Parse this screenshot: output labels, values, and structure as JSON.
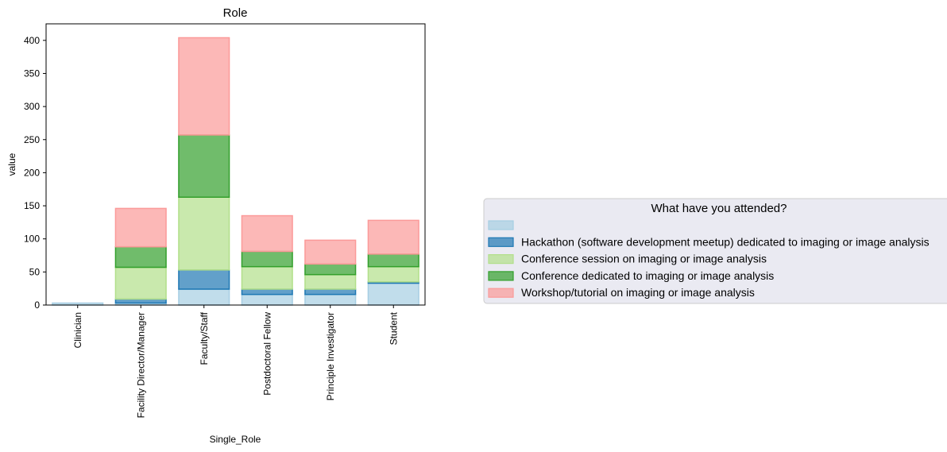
{
  "chart_data": {
    "type": "bar",
    "stacked": true,
    "title": "Role",
    "xlabel": "Single_Role",
    "ylabel": "value",
    "ylim": [
      0,
      425
    ],
    "yticks": [
      0,
      50,
      100,
      150,
      200,
      250,
      300,
      350,
      400
    ],
    "categories": [
      "Clinician",
      "Facility Director/Manager",
      "Faculty/Staff",
      "Postdoctoral Fellow",
      "Principle Investigator",
      "Student"
    ],
    "series": [
      {
        "name": "",
        "color": "#a6cee3",
        "edge": "#a6cee3",
        "values": [
          3,
          3,
          24,
          16,
          16,
          33
        ]
      },
      {
        "name": "Hackathon (software development meetup) dedicated to imaging or image analysis",
        "color": "#1f78b4",
        "edge": "#1f78b4",
        "values": [
          0,
          6,
          29,
          8,
          8,
          2
        ]
      },
      {
        "name": "Conference session on imaging or image analysis",
        "color": "#b2df8a",
        "edge": "#b2df8a",
        "values": [
          0,
          48,
          110,
          34,
          22,
          23
        ]
      },
      {
        "name": "Conference dedicated to imaging or image analysis",
        "color": "#33a02c",
        "edge": "#33a02c",
        "values": [
          0,
          31,
          94,
          23,
          16,
          19
        ]
      },
      {
        "name": "Workshop/tutorial on imaging or image analysis",
        "color": "#fb9a99",
        "edge": "#fb9a99",
        "values": [
          0,
          58,
          147,
          54,
          36,
          51
        ]
      }
    ],
    "legend": {
      "title": "What have you attended?",
      "placement": "center-right"
    },
    "grid": false
  }
}
